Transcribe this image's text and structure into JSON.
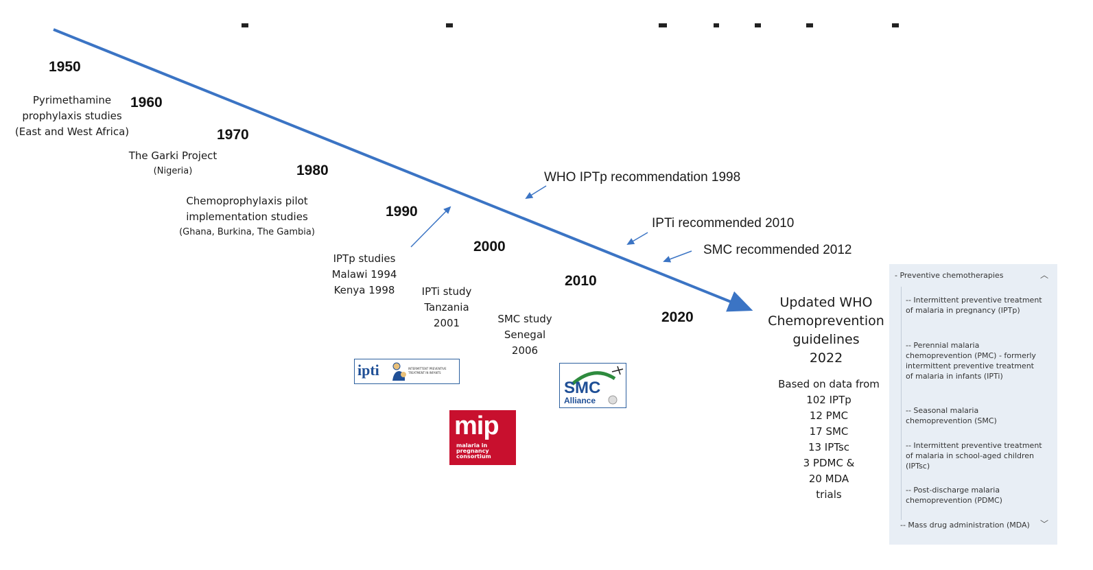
{
  "years": [
    "1950",
    "1960",
    "1970",
    "1980",
    "1990",
    "2000",
    "2010",
    "2020"
  ],
  "events": {
    "pyrimethamine": [
      "Pyrimethamine",
      "prophylaxis studies",
      "(East and West Africa)"
    ],
    "garki": [
      "The Garki Project",
      "(Nigeria)"
    ],
    "chemoprophylaxis": [
      "Chemoprophylaxis pilot",
      "implementation studies",
      "(Ghana, Burkina, The Gambia)"
    ],
    "iptp_studies": [
      "IPTp studies",
      "Malawi 1994",
      "Kenya 1998"
    ],
    "ipti_study": [
      "IPTi study",
      "Tanzania",
      "2001"
    ],
    "smc_study": [
      "SMC study",
      "Senegal",
      "2006"
    ]
  },
  "recommendations": {
    "iptp": "WHO IPTp recommendation 1998",
    "ipti": "IPTi recommended 2010",
    "smc": "SMC recommended 2012"
  },
  "guidelines": {
    "title_lines": [
      "Updated WHO",
      "Chemoprevention",
      "guidelines",
      "2022"
    ],
    "data_lines": [
      "Based on data from",
      "102 IPTp",
      "12 PMC",
      "17 SMC",
      "13 IPTsc",
      "3 PDMC &",
      "20 MDA",
      "trials"
    ]
  },
  "logos": {
    "ipti": {
      "word": "ipti",
      "sub": "INTERMITTENT PREVENTIVE TREATMENT IN INFANTS"
    },
    "mip": {
      "word": "mip",
      "sub_lines": [
        "malaria in",
        "pregnancy",
        "consortium"
      ]
    },
    "smc": {
      "word": "SMC",
      "sub": "Alliance"
    }
  },
  "panel": {
    "header": "- Preventive chemotherapies",
    "items": [
      "-- Intermittent preventive treatment of malaria in pregnancy (IPTp)",
      "-- Perennial malaria chemoprevention (PMC) - formerly intermittent preventive treatment of malaria in infants (IPTi)",
      "-- Seasonal malaria chemoprevention (SMC)",
      "-- Intermittent preventive treatment of malaria in school-aged children (IPTsc)",
      "-- Post-discharge malaria chemoprevention (PDMC)",
      "-- Mass drug administration (MDA)"
    ]
  },
  "colors": {
    "timeline": "#3b74c4",
    "arrow": "#3b74c4",
    "mip": "#c8102e",
    "panel_bg": "#e8eef5"
  }
}
